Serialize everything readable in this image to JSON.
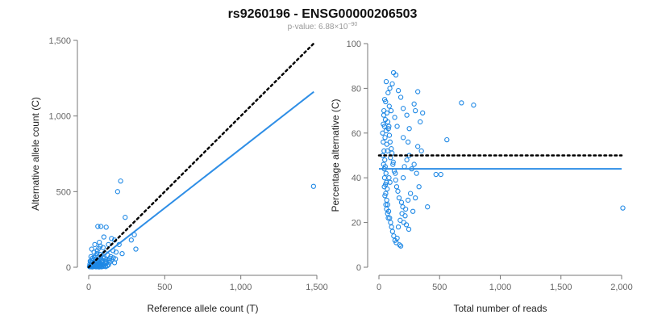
{
  "title": "rs9260196 - ENSG00000206503",
  "subtitle_prefix": "p-value: 6.88×10",
  "subtitle_exp": "−90",
  "colors": {
    "points": "#1e88e5",
    "fit": "#2e8ee6",
    "reference": "#000000",
    "axis": "#777777"
  },
  "chart_data": [
    {
      "type": "scatter",
      "xlabel": "Reference allele count (T)",
      "ylabel": "Alternative allele count (C)",
      "xlim": [
        0,
        1500
      ],
      "ylim": [
        0,
        1500
      ],
      "xticks": [
        "0",
        "500",
        "1,000",
        "1,500"
      ],
      "yticks": [
        "0",
        "500",
        "1,000",
        "1,500"
      ],
      "reference_line": {
        "style": "dotted",
        "from": [
          0,
          0
        ],
        "to": [
          1480,
          1480
        ]
      },
      "fit_line": {
        "style": "solid",
        "from": [
          0,
          0
        ],
        "to": [
          1480,
          1160
        ]
      },
      "points": [
        [
          1478,
          535
        ],
        [
          210,
          570
        ],
        [
          190,
          500
        ],
        [
          240,
          330
        ],
        [
          300,
          215
        ],
        [
          280,
          180
        ],
        [
          310,
          120
        ],
        [
          60,
          270
        ],
        [
          80,
          270
        ],
        [
          115,
          265
        ],
        [
          100,
          200
        ],
        [
          150,
          190
        ],
        [
          170,
          180
        ],
        [
          200,
          150
        ],
        [
          40,
          150
        ],
        [
          70,
          165
        ],
        [
          130,
          150
        ],
        [
          95,
          130
        ],
        [
          160,
          110
        ],
        [
          180,
          100
        ],
        [
          220,
          90
        ],
        [
          20,
          120
        ],
        [
          35,
          100
        ],
        [
          55,
          90
        ],
        [
          75,
          85
        ],
        [
          105,
          95
        ],
        [
          125,
          80
        ],
        [
          145,
          70
        ],
        [
          15,
          70
        ],
        [
          25,
          60
        ],
        [
          45,
          55
        ],
        [
          65,
          50
        ],
        [
          85,
          45
        ],
        [
          110,
          40
        ],
        [
          140,
          35
        ],
        [
          170,
          30
        ],
        [
          10,
          40
        ],
        [
          20,
          30
        ],
        [
          30,
          25
        ],
        [
          40,
          20
        ],
        [
          50,
          18
        ],
        [
          60,
          15
        ],
        [
          70,
          12
        ],
        [
          80,
          10
        ],
        [
          12,
          10
        ],
        [
          18,
          8
        ],
        [
          22,
          14
        ],
        [
          28,
          6
        ],
        [
          33,
          11
        ],
        [
          38,
          5
        ],
        [
          44,
          9
        ],
        [
          48,
          3
        ],
        [
          52,
          7
        ],
        [
          58,
          4
        ],
        [
          62,
          12
        ],
        [
          68,
          2
        ],
        [
          72,
          6
        ],
        [
          78,
          9
        ],
        [
          84,
          3
        ],
        [
          88,
          15
        ],
        [
          92,
          5
        ],
        [
          96,
          20
        ],
        [
          102,
          8
        ],
        [
          108,
          25
        ],
        [
          112,
          4
        ],
        [
          118,
          30
        ],
        [
          122,
          10
        ],
        [
          132,
          18
        ],
        [
          8,
          20
        ],
        [
          14,
          35
        ],
        [
          26,
          45
        ],
        [
          36,
          65
        ],
        [
          46,
          75
        ],
        [
          56,
          110
        ],
        [
          66,
          125
        ],
        [
          76,
          140
        ],
        [
          26,
          22
        ],
        [
          34,
          30
        ],
        [
          42,
          38
        ],
        [
          54,
          26
        ],
        [
          64,
          34
        ],
        [
          74,
          28
        ],
        [
          86,
          36
        ],
        [
          94,
          42
        ],
        [
          5,
          5
        ],
        [
          9,
          3
        ],
        [
          16,
          18
        ],
        [
          24,
          2
        ],
        [
          32,
          16
        ],
        [
          42,
          24
        ],
        [
          56,
          32
        ],
        [
          66,
          22
        ],
        [
          82,
          55
        ],
        [
          98,
          60
        ],
        [
          114,
          52
        ],
        [
          128,
          45
        ],
        [
          138,
          58
        ],
        [
          152,
          48
        ],
        [
          162,
          62
        ],
        [
          176,
          55
        ]
      ]
    },
    {
      "type": "scatter",
      "xlabel": "Total number of reads",
      "ylabel": "Percentage alternative (C)",
      "xlim": [
        0,
        2000
      ],
      "ylim": [
        0,
        100
      ],
      "xticks": [
        "0",
        "500",
        "1,000",
        "1,500",
        "2,000"
      ],
      "yticks": [
        "0",
        "20",
        "40",
        "60",
        "80",
        "100"
      ],
      "reference_line": {
        "style": "dotted",
        "from": [
          0,
          50
        ],
        "to": [
          2000,
          50
        ]
      },
      "fit_line": {
        "style": "solid",
        "from": [
          0,
          44
        ],
        "to": [
          2000,
          44
        ]
      },
      "points": [
        [
          2010,
          26.5
        ],
        [
          680,
          73.5
        ],
        [
          780,
          72.5
        ],
        [
          560,
          57
        ],
        [
          510,
          41.5
        ],
        [
          470,
          41.5
        ],
        [
          400,
          27
        ],
        [
          290,
          73
        ],
        [
          320,
          78.5
        ],
        [
          300,
          70
        ],
        [
          340,
          65
        ],
        [
          360,
          69
        ],
        [
          250,
          62
        ],
        [
          230,
          68
        ],
        [
          120,
          87
        ],
        [
          140,
          86
        ],
        [
          110,
          82
        ],
        [
          90,
          80
        ],
        [
          160,
          79
        ],
        [
          180,
          76
        ],
        [
          200,
          71
        ],
        [
          60,
          83
        ],
        [
          75,
          78
        ],
        [
          55,
          74
        ],
        [
          85,
          72
        ],
        [
          100,
          70
        ],
        [
          130,
          67
        ],
        [
          150,
          63
        ],
        [
          40,
          68
        ],
        [
          45,
          63
        ],
        [
          50,
          58
        ],
        [
          65,
          55
        ],
        [
          70,
          52
        ],
        [
          95,
          49
        ],
        [
          115,
          46
        ],
        [
          135,
          42
        ],
        [
          30,
          60
        ],
        [
          35,
          56
        ],
        [
          42,
          52
        ],
        [
          48,
          48
        ],
        [
          52,
          45
        ],
        [
          58,
          42
        ],
        [
          62,
          38
        ],
        [
          68,
          35
        ],
        [
          32,
          50
        ],
        [
          38,
          46
        ],
        [
          44,
          44
        ],
        [
          46,
          40
        ],
        [
          54,
          37
        ],
        [
          56,
          33
        ],
        [
          64,
          30
        ],
        [
          72,
          28
        ],
        [
          80,
          25
        ],
        [
          88,
          22
        ],
        [
          96,
          20
        ],
        [
          104,
          18
        ],
        [
          112,
          16
        ],
        [
          122,
          14
        ],
        [
          132,
          12
        ],
        [
          142,
          11
        ],
        [
          160,
          18
        ],
        [
          175,
          21
        ],
        [
          190,
          24
        ],
        [
          205,
          20
        ],
        [
          220,
          26
        ],
        [
          240,
          30
        ],
        [
          260,
          33
        ],
        [
          280,
          25
        ],
        [
          300,
          31
        ],
        [
          330,
          36
        ],
        [
          170,
          10
        ],
        [
          180,
          9.5
        ],
        [
          150,
          13
        ],
        [
          200,
          40
        ],
        [
          210,
          45
        ],
        [
          230,
          48
        ],
        [
          250,
          50
        ],
        [
          270,
          44
        ],
        [
          290,
          46
        ],
        [
          310,
          42
        ],
        [
          320,
          54
        ],
        [
          350,
          52
        ],
        [
          240,
          56
        ],
        [
          200,
          58
        ],
        [
          78,
          62
        ],
        [
          86,
          59
        ],
        [
          92,
          56
        ],
        [
          102,
          53
        ],
        [
          108,
          51
        ],
        [
          118,
          47
        ],
        [
          126,
          43
        ],
        [
          138,
          39
        ],
        [
          146,
          36
        ],
        [
          156,
          34
        ],
        [
          166,
          31
        ],
        [
          186,
          29
        ],
        [
          196,
          27
        ],
        [
          216,
          23
        ],
        [
          226,
          19
        ],
        [
          246,
          17
        ],
        [
          36,
          64
        ],
        [
          41,
          70
        ],
        [
          47,
          75
        ],
        [
          53,
          66
        ],
        [
          59,
          61
        ],
        [
          66,
          69
        ],
        [
          73,
          65
        ],
        [
          82,
          63
        ],
        [
          44,
          36
        ],
        [
          49,
          32
        ],
        [
          57,
          28
        ],
        [
          63,
          26
        ],
        [
          71,
          24
        ],
        [
          77,
          22
        ],
        [
          83,
          40
        ],
        [
          91,
          38
        ]
      ]
    }
  ]
}
